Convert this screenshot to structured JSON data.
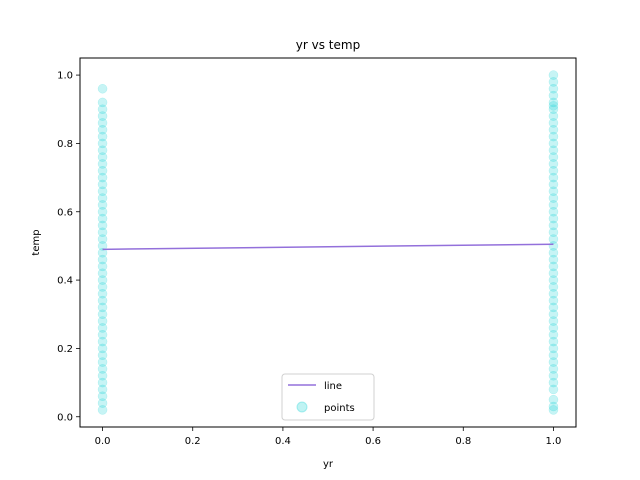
{
  "chart_data": {
    "type": "scatter",
    "title": "yr vs temp",
    "xlabel": "yr",
    "ylabel": "temp",
    "xlim": [
      -0.05,
      1.05
    ],
    "ylim": [
      -0.03,
      1.05
    ],
    "xticks": [
      "0.0",
      "0.2",
      "0.4",
      "0.6",
      "0.8",
      "1.0"
    ],
    "yticks": [
      "0.0",
      "0.2",
      "0.4",
      "0.6",
      "0.8",
      "1.0"
    ],
    "grid": false,
    "legend_position": "lower-center",
    "series": [
      {
        "name": "line",
        "kind": "line",
        "color": "#9370db",
        "x": [
          0.0,
          1.0
        ],
        "y": [
          0.49,
          0.505
        ]
      },
      {
        "name": "points",
        "kind": "scatter",
        "color": "#00ced1",
        "x": [
          0,
          0,
          0,
          0,
          0,
          0,
          0,
          0,
          0,
          0,
          0,
          0,
          0,
          0,
          0,
          0,
          0,
          0,
          0,
          0,
          0,
          0,
          0,
          0,
          0,
          0,
          0,
          0,
          0,
          0,
          0,
          0,
          0,
          0,
          0,
          0,
          0,
          0,
          0,
          0,
          0,
          0,
          0,
          0,
          0,
          0,
          0,
          1,
          1,
          1,
          1,
          1,
          1,
          1,
          1,
          1,
          1,
          1,
          1,
          1,
          1,
          1,
          1,
          1,
          1,
          1,
          1,
          1,
          1,
          1,
          1,
          1,
          1,
          1,
          1,
          1,
          1,
          1,
          1,
          1,
          1,
          1,
          1,
          1,
          1,
          1,
          1,
          1,
          1,
          1,
          1,
          1,
          1,
          1,
          1,
          1,
          1,
          1
        ],
        "y": [
          0.02,
          0.04,
          0.06,
          0.08,
          0.1,
          0.12,
          0.14,
          0.16,
          0.18,
          0.2,
          0.22,
          0.24,
          0.26,
          0.28,
          0.3,
          0.32,
          0.34,
          0.36,
          0.38,
          0.4,
          0.42,
          0.44,
          0.46,
          0.48,
          0.5,
          0.52,
          0.54,
          0.56,
          0.58,
          0.6,
          0.62,
          0.64,
          0.66,
          0.68,
          0.7,
          0.72,
          0.74,
          0.76,
          0.78,
          0.8,
          0.82,
          0.84,
          0.86,
          0.88,
          0.9,
          0.92,
          0.96,
          0.02,
          0.03,
          0.05,
          0.08,
          0.1,
          0.12,
          0.14,
          0.16,
          0.18,
          0.2,
          0.22,
          0.24,
          0.26,
          0.28,
          0.3,
          0.32,
          0.34,
          0.36,
          0.38,
          0.4,
          0.42,
          0.44,
          0.46,
          0.48,
          0.5,
          0.52,
          0.54,
          0.56,
          0.58,
          0.6,
          0.62,
          0.64,
          0.66,
          0.68,
          0.7,
          0.72,
          0.74,
          0.76,
          0.78,
          0.8,
          0.82,
          0.84,
          0.86,
          0.88,
          0.9,
          0.92,
          0.94,
          0.96,
          0.98,
          1.0,
          0.91
        ]
      }
    ]
  }
}
